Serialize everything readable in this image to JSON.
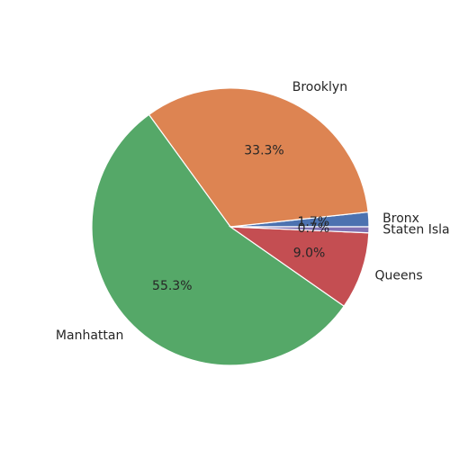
{
  "chart_data": {
    "type": "pie",
    "title": "",
    "start_angle_deg": 0,
    "direction": "counterclockwise",
    "slices": [
      {
        "label": "Bronx",
        "value": 1.7,
        "pct_label": "1.7%",
        "color": "#4c72b0"
      },
      {
        "label": "Brooklyn",
        "value": 33.3,
        "pct_label": "33.3%",
        "color": "#dd8452"
      },
      {
        "label": "Manhattan",
        "value": 55.3,
        "pct_label": "55.3%",
        "color": "#55a868"
      },
      {
        "label": "Queens",
        "value": 9.0,
        "pct_label": "9.0%",
        "color": "#c44e52"
      },
      {
        "label": "Staten Island",
        "value": 0.7,
        "pct_label": "0.7%",
        "color": "#8172b3"
      }
    ]
  }
}
